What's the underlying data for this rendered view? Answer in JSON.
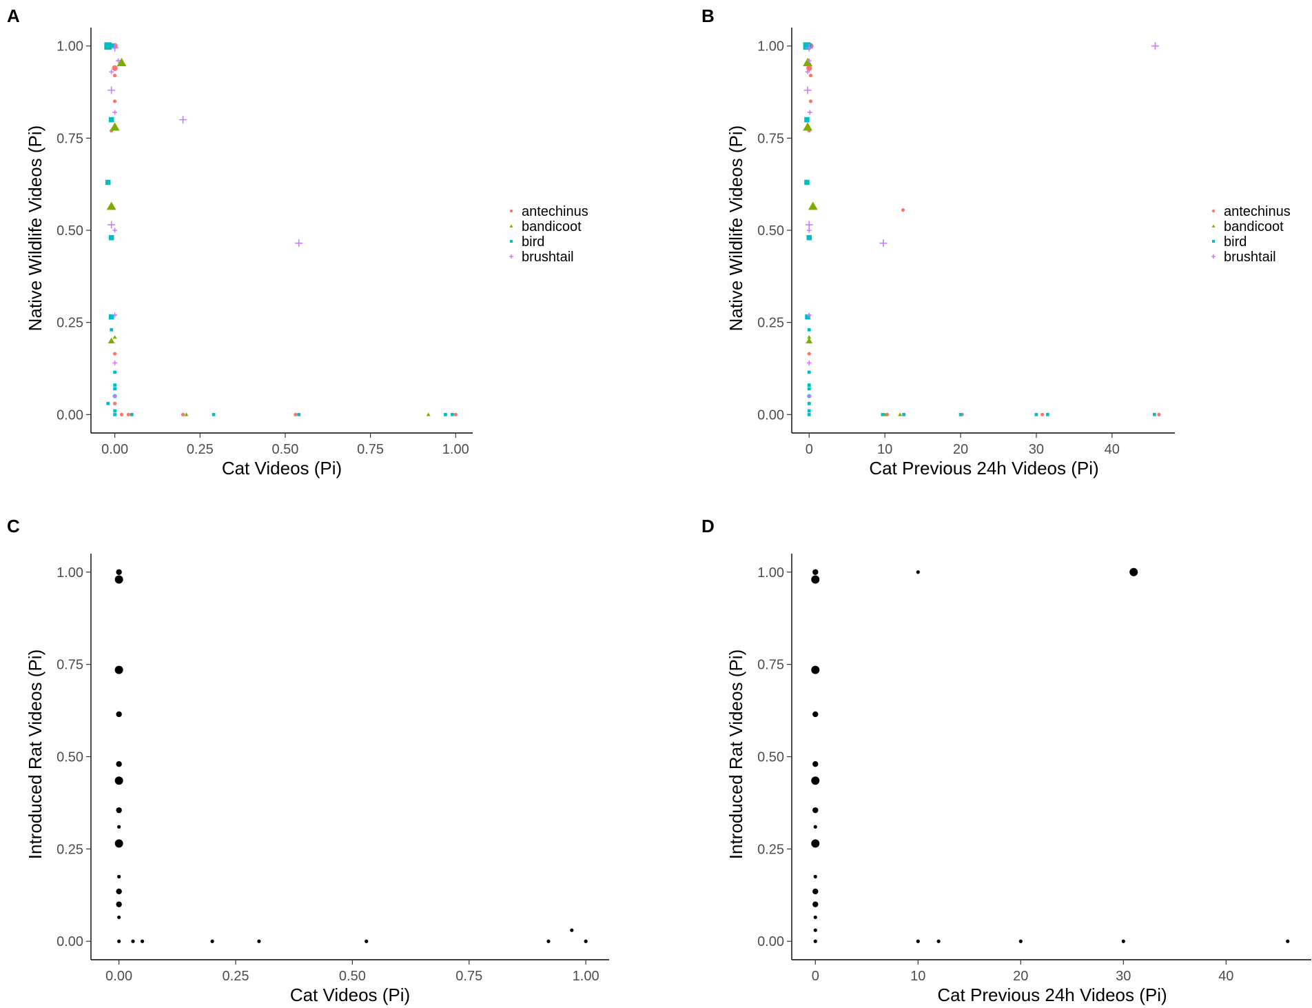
{
  "figure": {
    "colors": {
      "antechinus": "#F8766D",
      "bandicoot": "#7CAE00",
      "bird": "#00BFC4",
      "brushtail": "#C77CFF",
      "rat": "#000000"
    },
    "shapes": {
      "antechinus": "circle",
      "bandicoot": "triangle",
      "bird": "square",
      "brushtail": "plus"
    }
  },
  "chart_data": [
    {
      "panel": "A",
      "type": "scatter",
      "xlabel": "Cat Videos (Pi)",
      "ylabel": "Native Wildlife Videos (Pi)",
      "xlim": [
        -0.07,
        1.05
      ],
      "ylim": [
        -0.05,
        1.05
      ],
      "xticks": [
        0,
        0.25,
        0.5,
        0.75,
        1
      ],
      "xtick_labels": [
        "0.00",
        "0.25",
        "0.50",
        "0.75",
        "1.00"
      ],
      "yticks": [
        0,
        0.25,
        0.5,
        0.75,
        1
      ],
      "ytick_labels": [
        "0.00",
        "0.25",
        "0.50",
        "0.75",
        "1.00"
      ],
      "legend": [
        "antechinus",
        "bandicoot",
        "bird",
        "brushtail"
      ],
      "series": [
        {
          "name": "antechinus",
          "points": [
            [
              0.0,
              1.0,
              2
            ],
            [
              0.0,
              0.94,
              2
            ],
            [
              0.0,
              0.92,
              1
            ],
            [
              0.0,
              0.85,
              1
            ],
            [
              -0.01,
              0.77,
              1
            ],
            [
              0.0,
              0.165,
              1
            ],
            [
              0.0,
              0.03,
              1
            ],
            [
              0.02,
              0.0,
              1
            ],
            [
              0.04,
              0.0,
              1
            ],
            [
              0.2,
              0.0,
              1
            ],
            [
              0.53,
              0.0,
              1
            ],
            [
              1.0,
              0.0,
              1
            ]
          ]
        },
        {
          "name": "bandicoot",
          "points": [
            [
              0.02,
              0.955,
              3
            ],
            [
              0.0,
              0.78,
              3
            ],
            [
              -0.01,
              0.565,
              3
            ],
            [
              -0.01,
              0.2,
              2
            ],
            [
              0.0,
              0.21,
              1
            ],
            [
              0.0,
              0.0,
              1
            ],
            [
              0.21,
              0.0,
              1
            ],
            [
              0.92,
              0.0,
              1
            ]
          ]
        },
        {
          "name": "bird",
          "points": [
            [
              -0.02,
              1.0,
              3
            ],
            [
              -0.01,
              1.0,
              2
            ],
            [
              -0.01,
              0.8,
              2
            ],
            [
              -0.02,
              0.63,
              2
            ],
            [
              -0.01,
              0.48,
              2
            ],
            [
              -0.01,
              0.265,
              2
            ],
            [
              -0.01,
              0.23,
              1
            ],
            [
              0.0,
              0.115,
              1
            ],
            [
              0.0,
              0.08,
              1
            ],
            [
              0.0,
              0.07,
              1
            ],
            [
              0.0,
              0.05,
              1
            ],
            [
              -0.02,
              0.03,
              1
            ],
            [
              0.0,
              0.01,
              1
            ],
            [
              0.0,
              0.0,
              1
            ],
            [
              0.05,
              0.0,
              1
            ],
            [
              0.29,
              0.0,
              1
            ],
            [
              0.54,
              0.0,
              1
            ],
            [
              0.97,
              0.0,
              1
            ],
            [
              0.99,
              0.0,
              1
            ]
          ]
        },
        {
          "name": "brushtail",
          "points": [
            [
              0.0,
              0.995,
              2
            ],
            [
              0.01,
              0.96,
              1
            ],
            [
              -0.01,
              0.93,
              1
            ],
            [
              -0.01,
              0.88,
              2
            ],
            [
              0.0,
              0.82,
              1
            ],
            [
              0.2,
              0.8,
              2
            ],
            [
              -0.01,
              0.515,
              2
            ],
            [
              0.0,
              0.5,
              1
            ],
            [
              0.54,
              0.465,
              2
            ],
            [
              0.0,
              0.27,
              1
            ],
            [
              0.0,
              0.14,
              1
            ],
            [
              0.0,
              0.05,
              1
            ]
          ]
        }
      ]
    },
    {
      "panel": "B",
      "type": "scatter",
      "xlabel": "Cat Previous 24h Videos (Pi)",
      "ylabel": "Native Wildlife Videos (Pi)",
      "xlim": [
        -2.3,
        48.3
      ],
      "ylim": [
        -0.05,
        1.05
      ],
      "xticks": [
        0,
        10,
        20,
        30,
        40
      ],
      "xtick_labels": [
        "0",
        "10",
        "20",
        "30",
        "40"
      ],
      "yticks": [
        0,
        0.25,
        0.5,
        0.75,
        1
      ],
      "ytick_labels": [
        "0.00",
        "0.25",
        "0.50",
        "0.75",
        "1.00"
      ],
      "legend": [
        "antechinus",
        "bandicoot",
        "bird",
        "brushtail"
      ],
      "series": [
        {
          "name": "antechinus",
          "points": [
            [
              0.2,
              1.0,
              2
            ],
            [
              0.0,
              0.94,
              2
            ],
            [
              0.2,
              0.92,
              1
            ],
            [
              0.2,
              0.85,
              1
            ],
            [
              0.0,
              0.77,
              1
            ],
            [
              12.4,
              0.555,
              1
            ],
            [
              0.0,
              0.165,
              1
            ],
            [
              0.0,
              0.03,
              1
            ],
            [
              10.3,
              0.0,
              1
            ],
            [
              20.2,
              0.0,
              1
            ],
            [
              30.8,
              0.0,
              1
            ],
            [
              46.2,
              0.0,
              1
            ]
          ]
        },
        {
          "name": "bandicoot",
          "points": [
            [
              -0.2,
              0.955,
              3
            ],
            [
              -0.2,
              0.78,
              3
            ],
            [
              0.5,
              0.565,
              3
            ],
            [
              0.0,
              0.2,
              2
            ],
            [
              0.0,
              0.21,
              1
            ],
            [
              0.0,
              0.08,
              1
            ],
            [
              10.0,
              0.0,
              1
            ],
            [
              12.0,
              0.0,
              1
            ]
          ]
        },
        {
          "name": "bird",
          "points": [
            [
              -0.3,
              1.0,
              3
            ],
            [
              0.0,
              1.0,
              2
            ],
            [
              -0.3,
              0.8,
              2
            ],
            [
              -0.3,
              0.63,
              2
            ],
            [
              0.0,
              0.48,
              2
            ],
            [
              -0.2,
              0.265,
              2
            ],
            [
              0.0,
              0.23,
              1
            ],
            [
              0.0,
              0.115,
              1
            ],
            [
              0.0,
              0.08,
              1
            ],
            [
              0.0,
              0.07,
              1
            ],
            [
              0.0,
              0.05,
              1
            ],
            [
              0.0,
              0.03,
              1
            ],
            [
              0.0,
              0.01,
              1
            ],
            [
              0.0,
              0.0,
              1
            ],
            [
              9.7,
              0.0,
              1
            ],
            [
              12.5,
              0.0,
              1
            ],
            [
              20.0,
              0.0,
              1
            ],
            [
              30.0,
              0.0,
              1
            ],
            [
              31.5,
              0.0,
              1
            ],
            [
              45.6,
              0.0,
              1
            ]
          ]
        },
        {
          "name": "brushtail",
          "points": [
            [
              45.7,
              1.0,
              2
            ],
            [
              0.0,
              0.995,
              2
            ],
            [
              0.0,
              0.96,
              1
            ],
            [
              -0.2,
              0.93,
              1
            ],
            [
              -0.2,
              0.88,
              2
            ],
            [
              0.1,
              0.82,
              1
            ],
            [
              0.0,
              0.515,
              2
            ],
            [
              0.0,
              0.5,
              1
            ],
            [
              9.8,
              0.465,
              2
            ],
            [
              0.0,
              0.27,
              1
            ],
            [
              0.0,
              0.14,
              1
            ],
            [
              0.0,
              0.05,
              1
            ]
          ]
        }
      ]
    },
    {
      "panel": "C",
      "type": "scatter",
      "xlabel": "Cat Videos (Pi)",
      "ylabel": "Introduced Rat Videos (Pi)",
      "xlim": [
        -0.06,
        1.05
      ],
      "ylim": [
        -0.05,
        1.05
      ],
      "xticks": [
        0,
        0.25,
        0.5,
        0.75,
        1
      ],
      "xtick_labels": [
        "0.00",
        "0.25",
        "0.50",
        "0.75",
        "1.00"
      ],
      "yticks": [
        0,
        0.25,
        0.5,
        0.75,
        1
      ],
      "ytick_labels": [
        "0.00",
        "0.25",
        "0.50",
        "0.75",
        "1.00"
      ],
      "series": [
        {
          "name": "rat",
          "points": [
            [
              0.0,
              1.0,
              2
            ],
            [
              0.0,
              0.98,
              3
            ],
            [
              0.0,
              0.735,
              3
            ],
            [
              0.0,
              0.615,
              2
            ],
            [
              0.0,
              0.48,
              2
            ],
            [
              0.0,
              0.435,
              3
            ],
            [
              0.0,
              0.355,
              2
            ],
            [
              0.0,
              0.31,
              1
            ],
            [
              0.0,
              0.265,
              3
            ],
            [
              0.0,
              0.175,
              1
            ],
            [
              0.0,
              0.135,
              2
            ],
            [
              0.0,
              0.1,
              2
            ],
            [
              0.0,
              0.065,
              1
            ],
            [
              0.0,
              0.0,
              1
            ],
            [
              0.03,
              0.0,
              1
            ],
            [
              0.05,
              0.0,
              1
            ],
            [
              0.2,
              0.0,
              1
            ],
            [
              0.3,
              0.0,
              1
            ],
            [
              0.53,
              0.0,
              1
            ],
            [
              0.92,
              0.0,
              1
            ],
            [
              0.97,
              0.03,
              1
            ],
            [
              1.0,
              0.0,
              1
            ]
          ]
        }
      ]
    },
    {
      "panel": "D",
      "type": "scatter",
      "xlabel": "Cat Previous 24h Videos (Pi)",
      "ylabel": "Introduced Rat Videos (Pi)",
      "xlim": [
        -2.3,
        48.3
      ],
      "ylim": [
        -0.05,
        1.05
      ],
      "xticks": [
        0,
        10,
        20,
        30,
        40
      ],
      "xtick_labels": [
        "0",
        "10",
        "20",
        "30",
        "40"
      ],
      "yticks": [
        0,
        0.25,
        0.5,
        0.75,
        1
      ],
      "ytick_labels": [
        "0.00",
        "0.25",
        "0.50",
        "0.75",
        "1.00"
      ],
      "series": [
        {
          "name": "rat",
          "points": [
            [
              0.0,
              1.0,
              2
            ],
            [
              0.0,
              0.98,
              3
            ],
            [
              10.0,
              1.0,
              1
            ],
            [
              31.0,
              1.0,
              3
            ],
            [
              0.0,
              0.735,
              3
            ],
            [
              0.0,
              0.615,
              2
            ],
            [
              0.0,
              0.48,
              2
            ],
            [
              0.0,
              0.435,
              3
            ],
            [
              0.0,
              0.355,
              2
            ],
            [
              0.0,
              0.31,
              1
            ],
            [
              0.0,
              0.265,
              3
            ],
            [
              0.0,
              0.175,
              1
            ],
            [
              0.0,
              0.135,
              2
            ],
            [
              0.0,
              0.1,
              2
            ],
            [
              0.0,
              0.065,
              1
            ],
            [
              0.0,
              0.03,
              1
            ],
            [
              0.0,
              0.0,
              1
            ],
            [
              10.0,
              0.0,
              1
            ],
            [
              12.0,
              0.0,
              1
            ],
            [
              20.0,
              0.0,
              1
            ],
            [
              30.0,
              0.0,
              1
            ],
            [
              46.0,
              0.0,
              1
            ]
          ]
        }
      ]
    }
  ]
}
